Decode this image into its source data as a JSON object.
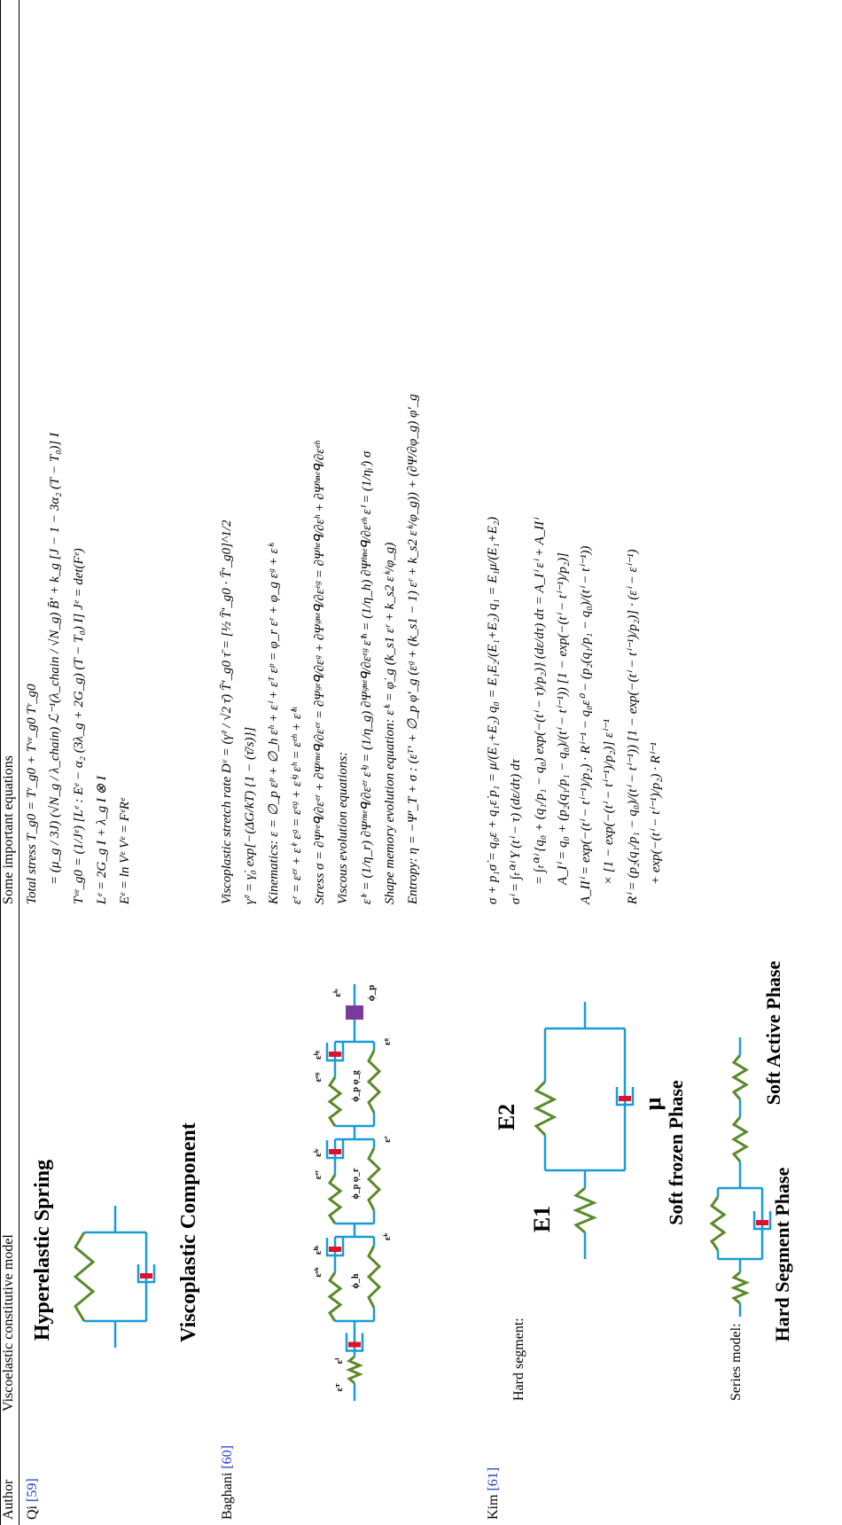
{
  "table": {
    "headers": [
      "Author",
      "Viscoelastic constitutive model",
      "Some important equations"
    ],
    "rows": [
      {
        "author": "Qi",
        "ref": "[59]",
        "model_labels": [
          "Hyperelastic Spring",
          "Viscoplastic Component"
        ],
        "equations": [
          "Total stress T_g0 = Tʳ_g0 + Tᵛᵉ_g0    Tʳ_g0",
          "= (μ_g / 3J) (√N_g / λ_chain) ℒ⁻¹(λ_chain / √N_g) B̄′ + k_g [J − 1 − 3α₂ (T − T₀)] I",
          "Tᵛᵉ_g0 = (1/Jᵉ) [Lᵉ : Eᵉ − α₂ (3λ_g + 2G_g) (T − T₀) I]    Jᵉ = det(Fᵉ)",
          "Lᵉ = 2G_g I + λ_g I ⊗ I",
          "Eᵉ = ln Vᵉ    Vᵉ = FᵉRᵉ"
        ]
      },
      {
        "author": "Baghani",
        "ref": "[60]",
        "model_labels": [
          "εᵀ",
          "εⁱ",
          "εᵉʰ",
          "εⁱʰ",
          "ϕ_h",
          "εʰ",
          "εᵉʳ",
          "εⁱʳ",
          "ϕ_p φ_r",
          "εʳ",
          "εᵉᵍ",
          "εⁱᵍ",
          "ϕ_p φ_g",
          "εᵍ",
          "εⁱˢ",
          "ϕ_p"
        ],
        "equations": [
          "Viscoplastic stretch rate Dᵛ = (γ̇ᵛ / √2 τ̄) T̄′_g0    τ̄ = [½ T̄′_g0 · T̄′_g0]^1/2",
          "γ̇ᵛ = γ̇₀ exp[−(ΔG/kT) {1 − (τ̄/s)}]",
          "Kinematics: ε = ∅_p εᵖ + ∅_h εʰ + εⁱ + εᵀ    εᵖ = φ_r εʳ + φ_g εᵍ + εⁱˢ",
          "εʳ = εᵉʳ + εⁱʳ    εᵍ = εᵉᵍ + εⁱᵍ    εʰ = εᵉʰ + εⁱʰ",
          "Stress σ = ∂Ψʳᵉᑫ/∂εᵉʳ + ∂Ψʳⁿᵉᑫ/∂εᵉʳ = ∂Ψᵍᵉᑫ/∂εᵍ + ∂Ψᵍⁿᵉᑫ/∂εᵉᵍ = ∂Ψʰᵉᑫ/∂εʰ + ∂Ψʰⁿᵉᑫ/∂εᵉʰ",
          "Viscous evolution equations:",
          "ε̇ⁱʳ = (1/η_r) ∂Ψʳⁿᵉᑫ/∂εᵉʳ    ε̇ⁱᵍ = (1/η_g) ∂Ψᵍⁿᵉᑫ/∂εᵉᵍ    ε̇ⁱʰ = (1/η_h) ∂Ψʰⁿᵉᑫ/∂εᵉʰ    ε̇ⁱ = (1/ηᵢⁱ) σ",
          "Shape memory evolution equation: ε̇ⁱˢ = φ̇_g (k_s1 εʳ + k_s2 εⁱˢ/φ_g)",
          "Entropy: η = −Ψ′_T + σ : (εᵀ′ + ∅_p φ′_g (εᵍ + (k_s1 − 1) εʳ + k_s2 εⁱˢ/φ_g)) + (∂Ψ/∂φ_g) φ′_g"
        ]
      },
      {
        "author": "Kim",
        "ref": "[61]",
        "model_labels": [
          "Hard segment:",
          "E1",
          "E2",
          "μ",
          "Series model:",
          "Hard Segment Phase",
          "Soft frozen Phase",
          "Soft Active Phase"
        ],
        "equations": [
          "σ + p₁σ̇ = q₀ε + q₁ε̇    p₁ = μ/(E₁+E₂)    q₀ = E₁E₂/(E₁+E₂)    q₁ = E₁μ/(E₁+E₂)",
          "σⁱ = ∫ₜ⁰ᵗⁱ Y (tⁱ − τ) (dε/dτ) dτ",
          "= ∫ₜ⁰ᵗⁱ {q₀ + (q₁/p₁ − q₀) exp(−(tⁱ − τ)/p₂)} (dε/dτ) dτ = A_Iⁱ εⁱ + A_IIⁱ",
          "A_Iⁱ = q₀ + (p₂(q₁/p₁ − q₀)/(tⁱ − tⁱ⁻¹)) [1 − exp(−(tⁱ − tⁱ⁻¹)/p₂)]",
          "A_IIⁱ = exp(−(tⁱ − tⁱ⁻¹)/p₂) · Rⁱ⁻¹ − q₀ε⁰ − (p₂(q₁/p₁ − q₀)/(tⁱ − tⁱ⁻¹))",
          "× [1 − exp(−(tⁱ − tⁱ⁻¹)/p₂)] εⁱ⁻¹",
          "Rⁱ = (p₂(q₁/p₁ − q₀)/(tⁱ − tⁱ⁻¹)) [1 − exp(−(tⁱ − tⁱ⁻¹)/p₂)] · (εⁱ − εⁱ⁻¹)",
          "+ exp(−(tⁱ − tⁱ⁻¹)/p₂) · Rⁱ⁻¹"
        ]
      }
    ]
  }
}
